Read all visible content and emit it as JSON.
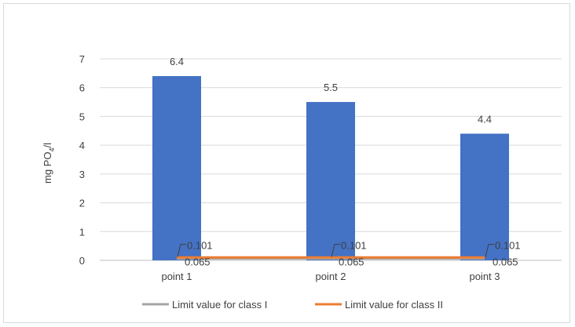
{
  "chart_data": {
    "type": "bar",
    "categories": [
      "point 1",
      "point 2",
      "point 3"
    ],
    "series": [
      {
        "values": [
          6.4,
          5.5,
          4.4
        ],
        "color": "#4472c4"
      },
      {
        "name": "Limit value for class I",
        "type": "line",
        "values": [
          0.065,
          0.065,
          0.065
        ],
        "color": "#a5a5a5"
      },
      {
        "name": "Limit value for class II",
        "type": "line",
        "values": [
          0.101,
          0.101,
          0.101
        ],
        "color": "#ed7d31"
      }
    ],
    "bar_labels": [
      "6.4",
      "5.5",
      "4.4"
    ],
    "class1_labels": [
      "0.065",
      "0.065",
      "0.065"
    ],
    "class2_labels": [
      "0.101",
      "0.101",
      "0.101"
    ],
    "ylabel_main": "mg PO",
    "ylabel_sub": "4",
    "ylabel_tail": "/l",
    "ylim": [
      0,
      7
    ],
    "yticks": [
      "0",
      "1",
      "2",
      "3",
      "4",
      "5",
      "6",
      "7"
    ],
    "grid": true,
    "legend_position": "bottom"
  }
}
